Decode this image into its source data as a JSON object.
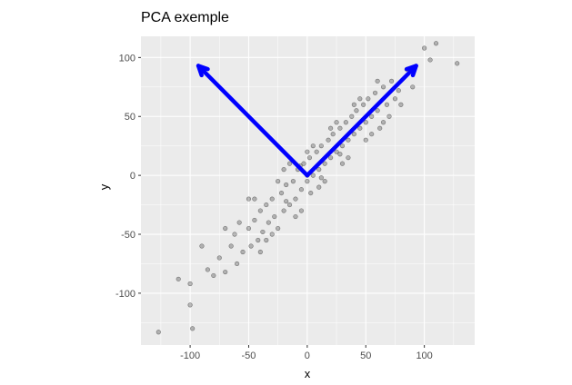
{
  "chart_data": {
    "type": "scatter",
    "title": "PCA exemple",
    "xlabel": "x",
    "ylabel": "y",
    "xlim": [
      -142,
      143
    ],
    "ylim": [
      -144,
      118
    ],
    "xticks": [
      -100,
      -50,
      0,
      50,
      100
    ],
    "yticks": [
      -100,
      -50,
      0,
      50,
      100
    ],
    "grid": true,
    "panel_background": "#ebebeb",
    "point_color": "#000000",
    "point_alpha": 0.25,
    "arrow_color": "#0000ff",
    "arrows": [
      {
        "from": [
          0,
          0
        ],
        "to": [
          93,
          93
        ]
      },
      {
        "from": [
          0,
          0
        ],
        "to": [
          -93,
          93
        ]
      }
    ],
    "values": [
      [
        -127,
        -133
      ],
      [
        -98,
        -130
      ],
      [
        -100,
        -110
      ],
      [
        -110,
        -88
      ],
      [
        -100,
        -92
      ],
      [
        -85,
        -80
      ],
      [
        -80,
        -85
      ],
      [
        -75,
        -70
      ],
      [
        -70,
        -82
      ],
      [
        -65,
        -60
      ],
      [
        -60,
        -75
      ],
      [
        -62,
        -50
      ],
      [
        -55,
        -65
      ],
      [
        -50,
        -45
      ],
      [
        -48,
        -60
      ],
      [
        -45,
        -38
      ],
      [
        -42,
        -55
      ],
      [
        -40,
        -30
      ],
      [
        -38,
        -48
      ],
      [
        -35,
        -25
      ],
      [
        -33,
        -40
      ],
      [
        -30,
        -20
      ],
      [
        -28,
        -35
      ],
      [
        -25,
        -45
      ],
      [
        -22,
        -15
      ],
      [
        -20,
        -30
      ],
      [
        -18,
        -8
      ],
      [
        -15,
        -25
      ],
      [
        -12,
        -5
      ],
      [
        -10,
        -20
      ],
      [
        -8,
        5
      ],
      [
        -5,
        -12
      ],
      [
        -3,
        10
      ],
      [
        0,
        -5
      ],
      [
        2,
        15
      ],
      [
        5,
        0
      ],
      [
        8,
        20
      ],
      [
        10,
        5
      ],
      [
        12,
        25
      ],
      [
        15,
        10
      ],
      [
        18,
        30
      ],
      [
        20,
        15
      ],
      [
        22,
        35
      ],
      [
        25,
        20
      ],
      [
        28,
        40
      ],
      [
        30,
        25
      ],
      [
        33,
        45
      ],
      [
        35,
        30
      ],
      [
        38,
        50
      ],
      [
        40,
        35
      ],
      [
        42,
        55
      ],
      [
        45,
        40
      ],
      [
        48,
        60
      ],
      [
        50,
        45
      ],
      [
        52,
        65
      ],
      [
        55,
        50
      ],
      [
        58,
        70
      ],
      [
        60,
        55
      ],
      [
        62,
        40
      ],
      [
        65,
        75
      ],
      [
        68,
        60
      ],
      [
        70,
        50
      ],
      [
        72,
        80
      ],
      [
        75,
        65
      ],
      [
        78,
        72
      ],
      [
        80,
        60
      ],
      [
        85,
        90
      ],
      [
        90,
        75
      ],
      [
        100,
        108
      ],
      [
        110,
        112
      ],
      [
        128,
        95
      ],
      [
        105,
        98
      ],
      [
        -90,
        -60
      ],
      [
        -70,
        -45
      ],
      [
        -50,
        -20
      ],
      [
        -30,
        -50
      ],
      [
        -20,
        5
      ],
      [
        -10,
        -35
      ],
      [
        0,
        20
      ],
      [
        10,
        -10
      ],
      [
        20,
        40
      ],
      [
        30,
        10
      ],
      [
        40,
        60
      ],
      [
        50,
        30
      ],
      [
        60,
        80
      ],
      [
        -15,
        10
      ],
      [
        -5,
        -30
      ],
      [
        5,
        25
      ],
      [
        15,
        -5
      ],
      [
        25,
        45
      ],
      [
        35,
        15
      ],
      [
        -40,
        -65
      ],
      [
        -25,
        -5
      ],
      [
        -35,
        -55
      ],
      [
        45,
        65
      ],
      [
        55,
        35
      ],
      [
        -58,
        -40
      ],
      [
        0,
        0
      ],
      [
        3,
        -15
      ],
      [
        -6,
        8
      ],
      [
        12,
        -2
      ],
      [
        -18,
        -22
      ],
      [
        28,
        18
      ],
      [
        -45,
        -20
      ],
      [
        65,
        45
      ]
    ]
  }
}
